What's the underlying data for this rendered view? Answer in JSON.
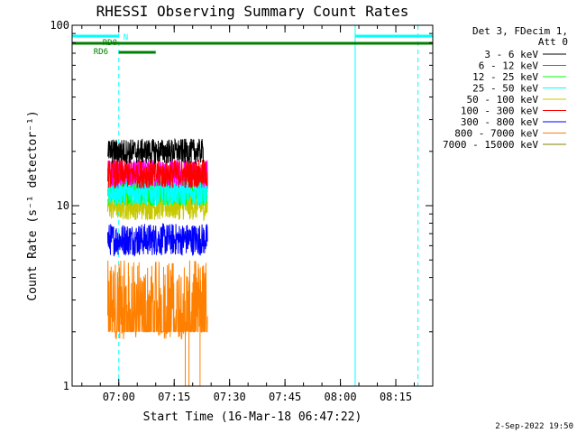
{
  "chart_data": {
    "type": "line",
    "title": "RHESSI Observing Summary Count Rates",
    "xlabel": "Start Time (16-Mar-18 06:47:22)",
    "ylabel": "Count Rate (s⁻¹ detector⁻¹)",
    "yscale": "log",
    "ylim": [
      1,
      100
    ],
    "y_ticks": [
      {
        "value": 1,
        "label": "1"
      },
      {
        "value": 10,
        "label": "10"
      },
      {
        "value": 100,
        "label": "100"
      }
    ],
    "xlim": [
      "06:47:22",
      "08:25:00"
    ],
    "x_ticks": [
      {
        "value": "07:00",
        "label": "07:00"
      },
      {
        "value": "07:15",
        "label": "07:15"
      },
      {
        "value": "07:30",
        "label": "07:30"
      },
      {
        "value": "07:45",
        "label": "07:45"
      },
      {
        "value": "08:00",
        "label": "08:00"
      },
      {
        "value": "08:15",
        "label": "08:15"
      }
    ],
    "legend_title": [
      "Det 3, FDecim 1,",
      "Att 0"
    ],
    "legend_position": "right, outside plot",
    "series": [
      {
        "name": "3 - 6 keV",
        "color": "#000000",
        "time_range": [
          "06:57",
          "07:23"
        ],
        "level": 20
      },
      {
        "name": "6 - 12 keV",
        "color": "#ff00ff",
        "time_range": [
          "06:57",
          "07:24"
        ],
        "level": 15
      },
      {
        "name": "12 - 25 keV",
        "color": "#00ff00",
        "time_range": [
          "06:57",
          "07:24"
        ],
        "level": 12
      },
      {
        "name": "25 - 50 keV",
        "color": "#00ffff",
        "time_range": [
          "06:57",
          "07:24"
        ],
        "level": 12
      },
      {
        "name": "50 - 100 keV",
        "color": "#c8c800",
        "time_range": [
          "06:57",
          "07:24"
        ],
        "level": 10
      },
      {
        "name": "100 - 300 keV",
        "color": "#ff0000",
        "time_range": [
          "06:57",
          "07:24"
        ],
        "level": 15
      },
      {
        "name": "300 - 800 keV",
        "color": "#0000ff",
        "time_range": [
          "06:57",
          "07:24"
        ],
        "level": 6.5
      },
      {
        "name": "800 - 7000 keV",
        "color": "#ff8000",
        "time_range": [
          "06:57",
          "07:24"
        ],
        "level": 3
      },
      {
        "name": "7000 - 15000 keV",
        "color": "#808000",
        "time_range": [
          "06:57",
          "07:24"
        ],
        "level": 2
      }
    ],
    "flag_bars": [
      {
        "label": "N",
        "color": "#00ffff",
        "segments": [
          [
            "06:47:22",
            "07:00"
          ],
          [
            "08:04",
            "08:25"
          ]
        ],
        "level": 1
      },
      {
        "label": "RD0",
        "color": "#008000",
        "segments": [
          [
            "06:47:22",
            "08:25"
          ]
        ],
        "level": 2
      },
      {
        "label": "RD6",
        "color": "#008000",
        "segments": [
          [
            "07:00",
            "07:10"
          ]
        ],
        "level": 3
      }
    ],
    "vertical_lines": [
      {
        "time": "06:47:22",
        "color": "#00ffff",
        "style": "solid"
      },
      {
        "time": "07:00",
        "color": "#00ffff",
        "style": "dashed"
      },
      {
        "time": "08:04",
        "color": "#00ffff",
        "style": "solid"
      },
      {
        "time": "08:21",
        "color": "#00ffff",
        "style": "dashed"
      }
    ]
  },
  "footer": {
    "date": "2-Sep-2022 19:50"
  }
}
